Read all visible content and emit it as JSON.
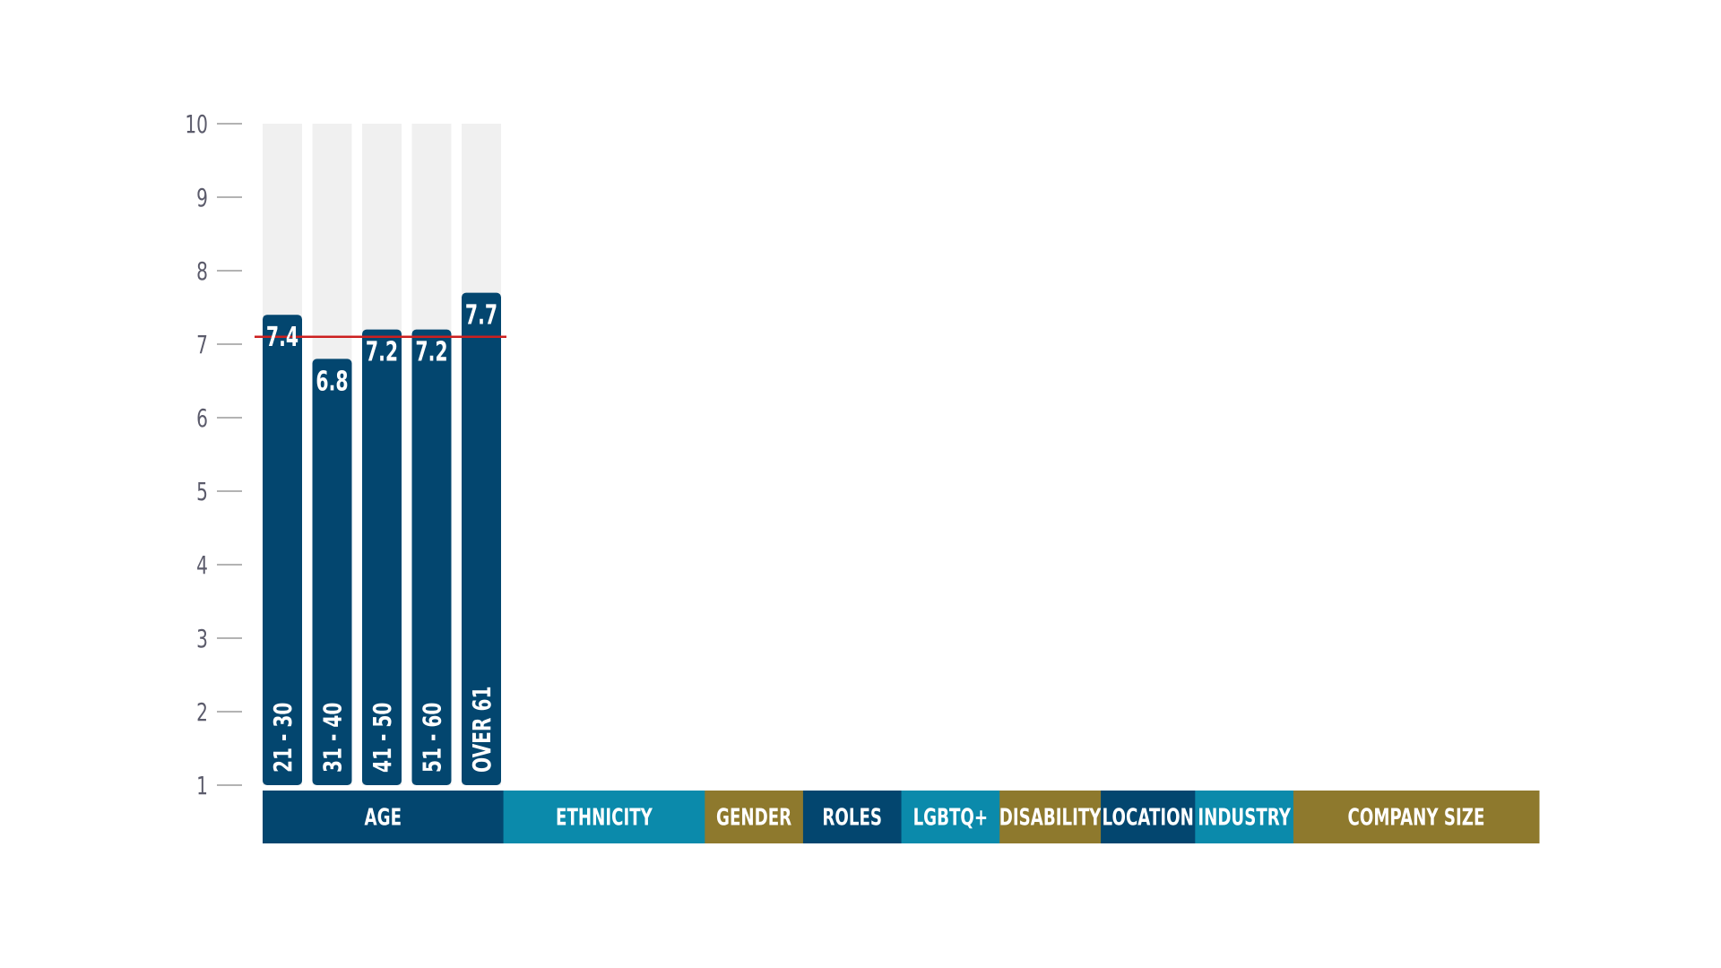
{
  "chart_data": {
    "type": "bar",
    "categories": [
      "21 - 30",
      "31 - 40",
      "41 - 50",
      "51 - 60",
      "OVER 61"
    ],
    "values": [
      7.4,
      6.8,
      7.2,
      7.2,
      7.7
    ],
    "value_labels": [
      "7.4",
      "6.8",
      "7.2",
      "7.2",
      "7.7"
    ],
    "ylim": [
      1,
      10
    ],
    "yticks": [
      "1",
      "2",
      "3",
      "4",
      "5",
      "6",
      "7",
      "8",
      "9",
      "10"
    ],
    "reference_line": 7.1,
    "grid": false,
    "group_tabs": [
      {
        "label": "AGE",
        "color": "#03466f",
        "weight": 2.45
      },
      {
        "label": "ETHNICITY",
        "color": "#0b8aab",
        "weight": 2.05
      },
      {
        "label": "GENDER",
        "color": "#8e792d",
        "weight": 1.0
      },
      {
        "label": "ROLES",
        "color": "#03466f",
        "weight": 1.0
      },
      {
        "label": "LGBTQ+",
        "color": "#0b8aab",
        "weight": 1.0
      },
      {
        "label": "DISABILITY",
        "color": "#8e792d",
        "weight": 1.03
      },
      {
        "label": "LOCATION",
        "color": "#03466f",
        "weight": 0.96
      },
      {
        "label": "INDUSTRY",
        "color": "#0b8aab",
        "weight": 1.0
      },
      {
        "label": "COMPANY SIZE",
        "color": "#8e792d",
        "weight": 2.5
      }
    ]
  },
  "colors": {
    "bar": "#03466f",
    "bar_track": "#f0f0f0",
    "reference_line": "#cc1f1f",
    "tick_text": "#5b5b6b",
    "tick_mark": "#9a9a9a",
    "label_text": "#ffffff"
  }
}
